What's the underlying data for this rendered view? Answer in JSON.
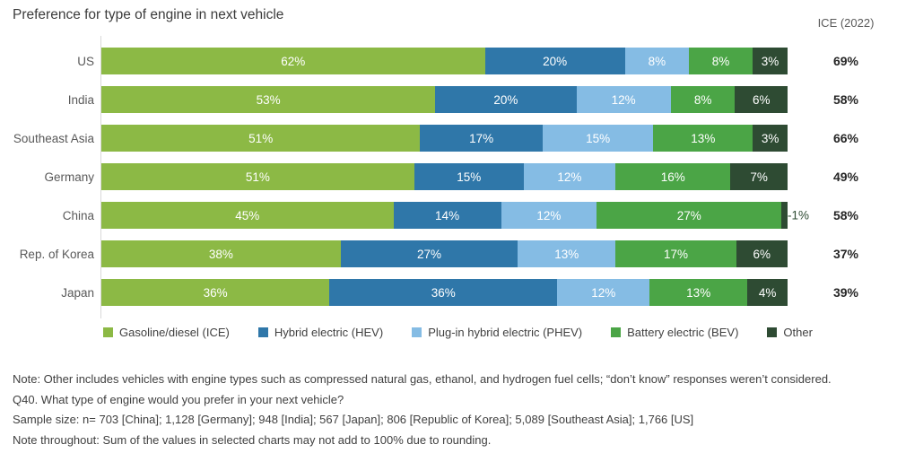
{
  "title": "Preference for type of engine in next vehicle",
  "ice_header": "ICE (2022)",
  "chart_data": {
    "type": "bar",
    "orientation": "horizontal",
    "stacked": true,
    "unit": "%",
    "title": "Preference for type of engine in next vehicle",
    "legend_position": "bottom",
    "grid": false,
    "categories": [
      "US",
      "India",
      "Southeast Asia",
      "Germany",
      "China",
      "Rep. of Korea",
      "Japan"
    ],
    "series": [
      {
        "name": "Gasoline/diesel (ICE)",
        "color": "#8cb945",
        "values": [
          62,
          53,
          51,
          51,
          45,
          38,
          36
        ]
      },
      {
        "name": "Hybrid electric (HEV)",
        "color": "#2f77a9",
        "values": [
          20,
          20,
          17,
          15,
          14,
          27,
          36
        ]
      },
      {
        "name": "Plug-in hybrid electric (PHEV)",
        "color": "#85bce4",
        "values": [
          8,
          12,
          15,
          12,
          12,
          13,
          12
        ]
      },
      {
        "name": "Battery electric (BEV)",
        "color": "#4ba546",
        "values": [
          8,
          8,
          13,
          16,
          27,
          17,
          13
        ]
      },
      {
        "name": "Other",
        "color": "#2e4b33",
        "values": [
          3,
          6,
          3,
          7,
          1,
          6,
          4
        ]
      }
    ],
    "extra_column": {
      "header": "ICE (2022)",
      "values": [
        "69%",
        "58%",
        "66%",
        "49%",
        "58%",
        "37%",
        "39%"
      ]
    },
    "outside_label_threshold_pct": 2.5
  },
  "notes": [
    "Note: Other includes vehicles with engine types such as compressed natural gas, ethanol, and hydrogen fuel cells; “don’t know” responses weren’t considered.",
    "Q40. What type of engine would you prefer in your next vehicle?",
    "Sample size: n= 703 [China]; 1,128 [Germany]; 948 [India]; 567 [Japan]; 806 [Republic of Korea]; 5,089 [Southeast Asia]; 1,766 [US]",
    "Note throughout: Sum of the values in selected charts may not add to 100% due to rounding."
  ]
}
